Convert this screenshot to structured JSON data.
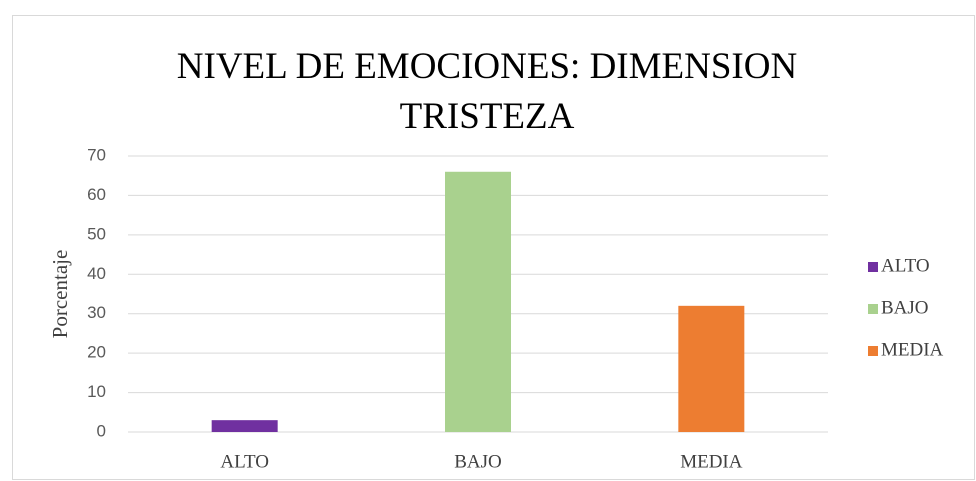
{
  "chart_data": {
    "type": "bar",
    "title": "NIVEL DE EMOCIONES: DIMENSION TRISTEZA",
    "y_label": "Porcentaje",
    "categories": [
      "ALTO",
      "BAJO",
      "MEDIA"
    ],
    "values": [
      3,
      66,
      32
    ],
    "colors": [
      "#7030a0",
      "#a9d18e",
      "#ed7d31"
    ],
    "ylim": [
      0,
      70
    ],
    "yticks": [
      0,
      10,
      20,
      30,
      40,
      50,
      60,
      70
    ],
    "grid": true,
    "legend": "right"
  }
}
